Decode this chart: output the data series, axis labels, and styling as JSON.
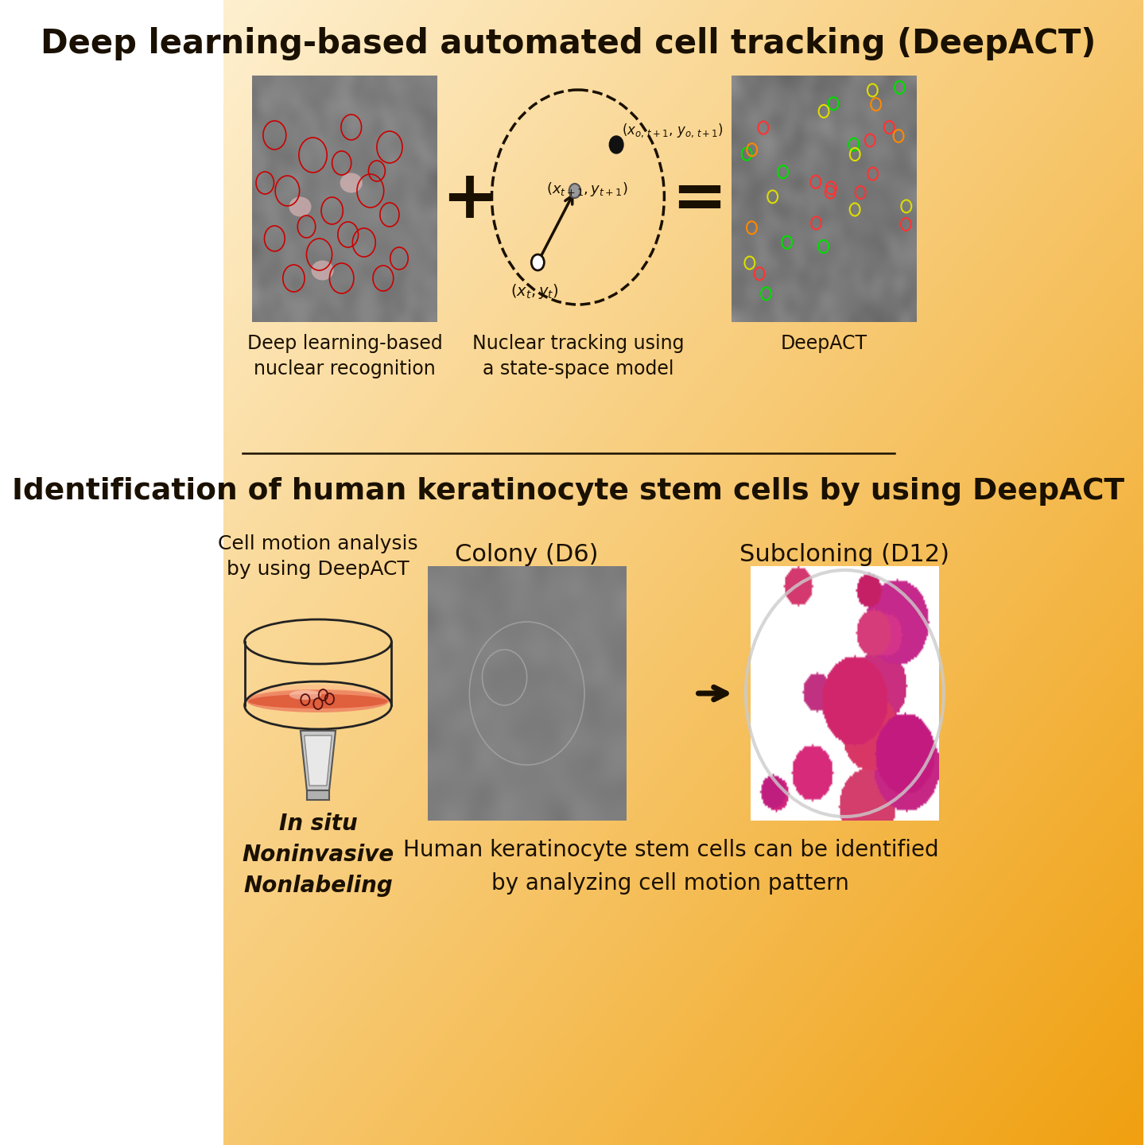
{
  "title1": "Deep learning-based automated cell tracking (DeepACT)",
  "title2": "Identification of human keratinocyte stem cells by using DeepACT",
  "label_nuclear": "Deep learning-based\nnuclear recognition",
  "label_tracking": "Nuclear tracking using\na state-space model",
  "label_deepact": "DeepACT",
  "label_cell_motion": "Cell motion analysis\nby using DeepACT",
  "label_colony": "Colony (D6)",
  "label_subcloning": "Subcloning (D12)",
  "label_insitu": "In situ\nNoninvasive\nNonlabeling",
  "label_conclusion": "Human keratinocyte stem cells can be identified\nby analyzing cell motion pattern",
  "text_color": "#1a1000",
  "title_fontsize": 30,
  "subtitle_fontsize": 27,
  "label_fontsize": 17,
  "plus_symbol": "+",
  "equals_symbol": "="
}
